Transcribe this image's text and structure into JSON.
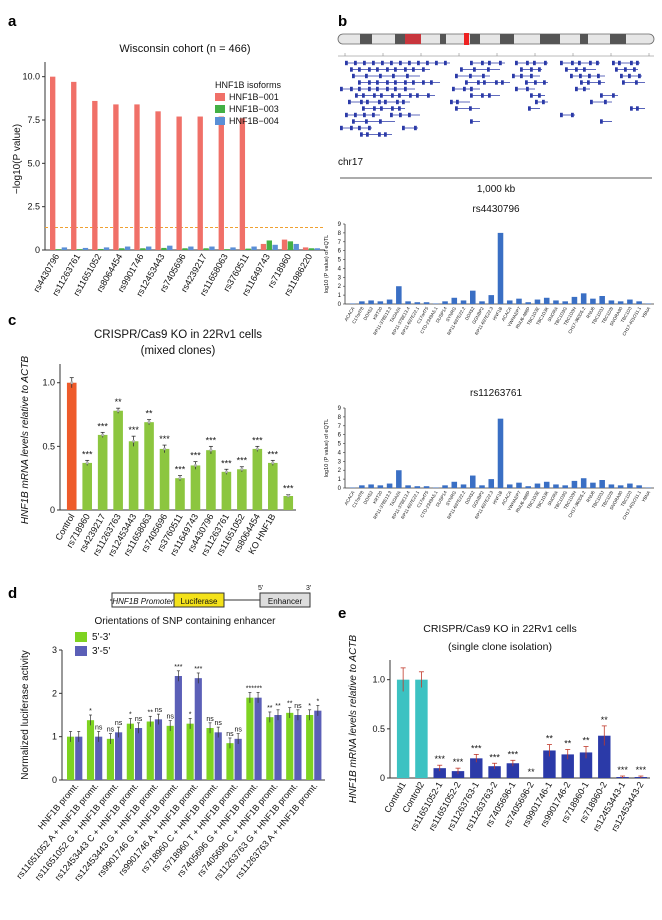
{
  "panels": {
    "a": "a",
    "b": "b",
    "c": "c",
    "d": "d",
    "e": "e"
  },
  "colors": {
    "red": "#f07068",
    "green": "#43b045",
    "blue": "#5a8fd6",
    "dark_blue": "#2b3aa8",
    "gene_blue": "#2b3aa8",
    "lime": "#8cc63f",
    "orange": "#ee5b2b",
    "cyan": "#3cc2c2",
    "light_green": "#7ed321",
    "purple": "#5b5fb7"
  },
  "chart_data": [
    {
      "id": "a",
      "type": "bar",
      "title": "Wisconsin cohort (n = 466)",
      "ylabel": "−log10(P value)",
      "ylim": [
        0,
        10.5
      ],
      "yticks": [
        "0",
        "2.5",
        "5.0",
        "7.5",
        "10.0"
      ],
      "ytick_values": [
        0,
        2.5,
        5.0,
        7.5,
        10.0
      ],
      "threshold": 1.3,
      "legend_title": "HNF1B isoforms",
      "categories": [
        "rs4430796",
        "rs11263761",
        "rs11651052",
        "rs8064454",
        "rs9901746",
        "rs12453443",
        "rs7405696",
        "rs4239217",
        "rs11658063",
        "rs3760511",
        "rs11649743",
        "rs718960",
        "rs11986220"
      ],
      "series": [
        {
          "name": "HNF1B−001",
          "color": "#f07068",
          "values": [
            10.0,
            9.7,
            8.6,
            8.4,
            8.4,
            8.0,
            7.7,
            7.7,
            7.7,
            7.6,
            0.35,
            0.6,
            0.15
          ]
        },
        {
          "name": "HNF1B−003",
          "color": "#43b045",
          "values": [
            0.05,
            0.05,
            0.06,
            0.1,
            0.1,
            0.12,
            0.1,
            0.1,
            0.05,
            0.08,
            0.55,
            0.5,
            0.1
          ]
        },
        {
          "name": "HNF1B−004",
          "color": "#5a8fd6",
          "values": [
            0.15,
            0.12,
            0.15,
            0.2,
            0.2,
            0.25,
            0.2,
            0.2,
            0.15,
            0.2,
            0.3,
            0.35,
            0.1
          ]
        }
      ]
    },
    {
      "id": "b1",
      "type": "bar",
      "title": "rs4430796",
      "ylabel": "log10 (P value) of eQTL",
      "ylim": [
        0,
        9
      ],
      "yticks": [
        "0",
        "1",
        "2",
        "3",
        "4",
        "5",
        "6",
        "7",
        "8",
        "9"
      ],
      "categories": [
        "ACACA",
        "C17orf78",
        "DDX52",
        "KRT20",
        "RP11-378E13.3",
        "TADA2A",
        "RP11-378E13.4",
        "RP11-697E22.1",
        "C17orf75",
        "CTD-2349A5.1",
        "DUSP14",
        "SYNRG",
        "RP11-697E22.2",
        "DDX52",
        "GGNBP2",
        "RP11-697E22.3",
        "HNF1B",
        "ACACA",
        "YWHAEP7",
        "RNU6-488P",
        "TBC1D3E",
        "TBC1D3K",
        "SNORA",
        "TBC1D3G",
        "TBC1D3H",
        "CH17-360D5.2",
        "RNU6",
        "TBC1D3J",
        "TBC1D3I",
        "SNORA90",
        "TBC1D3",
        "CH17-401O11.1",
        "YBNA"
      ],
      "values": [
        0.05,
        0.3,
        0.4,
        0.3,
        0.5,
        2.0,
        0.3,
        0.2,
        0.2,
        0.05,
        0.3,
        0.7,
        0.4,
        1.5,
        0.3,
        1.0,
        8.0,
        0.4,
        0.6,
        0.2,
        0.5,
        0.7,
        0.4,
        0.3,
        0.8,
        1.2,
        0.6,
        0.9,
        0.4,
        0.3,
        0.5,
        0.3,
        0.05
      ]
    },
    {
      "id": "b2",
      "type": "bar",
      "title": "rs11263761",
      "ylabel": "log10 (P value) of eQTL",
      "ylim": [
        0,
        9
      ],
      "yticks": [
        "0",
        "1",
        "2",
        "3",
        "4",
        "5",
        "6",
        "7",
        "8",
        "9"
      ],
      "categories": [
        "ACACA",
        "C17orf78",
        "DDX52",
        "KRT20",
        "RP11-378E13.3",
        "TADA2A",
        "RP11-378E13.4",
        "RP11-697E22.1",
        "C17orf75",
        "CTD-2349A5.1",
        "DUSP14",
        "SYNRG",
        "RP11-697E22.2",
        "DDX52",
        "GGNBP2",
        "RP11-697E22.3",
        "HNF1B",
        "ACACA",
        "YWHAEP7",
        "RNU6-488P",
        "TBC1D3E",
        "TBC1D3K",
        "SNORA",
        "TBC1D3G",
        "TBC1D3H",
        "CH17-360D5.2",
        "RNU6",
        "TBC1D3J",
        "TBC1D3I",
        "SNORA90",
        "TBC1D3",
        "CH17-401O11.1",
        "YBNA"
      ],
      "values": [
        0.05,
        0.3,
        0.4,
        0.3,
        0.5,
        2.0,
        0.3,
        0.2,
        0.2,
        0.05,
        0.3,
        0.7,
        0.4,
        1.4,
        0.3,
        1.0,
        7.8,
        0.4,
        0.6,
        0.2,
        0.5,
        0.7,
        0.4,
        0.3,
        0.8,
        1.1,
        0.6,
        0.9,
        0.4,
        0.3,
        0.5,
        0.3,
        0.05
      ]
    },
    {
      "id": "c",
      "type": "bar",
      "title": "CRISPR/Cas9 KO in 22Rv1 cells",
      "subtitle": "(mixed clones)",
      "ylabel": "HNF1B mRNA levels relative to ACTB",
      "ylim": [
        0,
        1.1
      ],
      "yticks": [
        "0",
        "0.5",
        "1.0"
      ],
      "ytick_values": [
        0,
        0.5,
        1.0
      ],
      "categories": [
        "Control",
        "rs718960",
        "rs4239217",
        "rs11263763",
        "rs12453443",
        "rs11658063",
        "rs7405696",
        "rs3760511",
        "rs11649743",
        "rs4430796",
        "rs11263761",
        "rs11651052",
        "rs8064454",
        "KO HNF1B"
      ],
      "values": [
        1.0,
        0.37,
        0.59,
        0.78,
        0.54,
        0.69,
        0.48,
        0.25,
        0.35,
        0.47,
        0.3,
        0.32,
        0.48,
        0.37
      ],
      "errors": [
        0.04,
        0.02,
        0.02,
        0.02,
        0.04,
        0.02,
        0.03,
        0.02,
        0.03,
        0.03,
        0.02,
        0.02,
        0.02,
        0.02
      ],
      "sig": [
        "",
        "***",
        "***",
        "**",
        "***",
        "**",
        "***",
        "***",
        "***",
        "***",
        "***",
        "***",
        "***",
        "***"
      ],
      "extra_bar": {
        "value": 0.11,
        "error": 0.01,
        "sig": "***"
      }
    },
    {
      "id": "d",
      "type": "bar",
      "title": "Orientations of SNP containing enhancer",
      "construct": {
        "promoter": "HNF1B Promoter",
        "reporter": "Luciferase",
        "enhancer": "Enhancer",
        "five": "5'",
        "three": "3'"
      },
      "ylabel": "Normalized luciferase activity",
      "ylim": [
        0,
        3
      ],
      "yticks": [
        "0",
        "1",
        "2",
        "3"
      ],
      "ytick_values": [
        0,
        1,
        2,
        3
      ],
      "categories": [
        "HNF1B promt.",
        "rs11651052 A + HNF1B promt.",
        "rs11651052 G + HNF1B promt.",
        "rs12453443 C + HNF1B promt.",
        "rs12453443 G + HNF1B promt.",
        "rs9901746 G + HNF1B promt.",
        "rs9901746 A + HNF1B promt.",
        "rs718960 C + HNF1B promt.",
        "rs718960 T + HNF1B promt.",
        "rs7405696 G + HNF1B promt.",
        "rs7405696 C + HNF1B promt.",
        "rs11263763 G + HNF1B promt.",
        "rs11263763 A + HNF1B promt."
      ],
      "series": [
        {
          "name": "5'-3'",
          "color": "#7ed321",
          "values": [
            1.0,
            1.38,
            0.95,
            1.3,
            1.35,
            1.25,
            1.3,
            1.2,
            0.85,
            1.9,
            1.45,
            1.55,
            1.5
          ],
          "sig": [
            "",
            "*",
            "ns",
            "*",
            "**",
            "ns",
            "*",
            "ns",
            "ns",
            "***",
            "**",
            "**",
            "*"
          ]
        },
        {
          "name": "3'-5'",
          "color": "#5b5fb7",
          "values": [
            1.0,
            1.0,
            1.1,
            1.2,
            1.4,
            2.4,
            2.35,
            1.1,
            0.95,
            1.9,
            1.5,
            1.5,
            1.6
          ],
          "sig": [
            "",
            "ns",
            "ns",
            "ns",
            "ns",
            "***",
            "***",
            "ns",
            "ns",
            "***",
            "**",
            "ns",
            "*"
          ]
        }
      ]
    },
    {
      "id": "e",
      "type": "bar",
      "title": "CRISPR/Cas9 KO in 22Rv1 cells",
      "subtitle": "(single clone isolation)",
      "ylabel": "HNF1B mRNA levels relative to ACTB",
      "ylim": [
        0,
        1.2
      ],
      "yticks": [
        "0",
        "0.5",
        "1.0"
      ],
      "ytick_values": [
        0,
        0.5,
        1.0
      ],
      "categories": [
        "Control1",
        "Control2",
        "rs11651052-1",
        "rs11651052-2",
        "rs11263763-1",
        "rs11263763-2",
        "rs7405696-1",
        "rs7405696-2",
        "rs9901746-1",
        "rs9901746-2",
        "rs718960-1",
        "rs718960-2",
        "rs12453443-1",
        "rs12453443-2"
      ],
      "values": [
        1.0,
        1.0,
        0.1,
        0.07,
        0.2,
        0.12,
        0.15,
        0.0,
        0.28,
        0.24,
        0.26,
        0.43,
        0.01,
        0.01
      ],
      "errors": [
        0.12,
        0.08,
        0.03,
        0.03,
        0.04,
        0.03,
        0.03,
        0.0,
        0.06,
        0.05,
        0.06,
        0.1,
        0.01,
        0.01
      ],
      "sig": [
        "",
        "",
        "***",
        "***",
        "***",
        "***",
        "***",
        "**",
        "**",
        "**",
        "**",
        "**",
        "***",
        "***"
      ]
    }
  ],
  "panel_b": {
    "chrom_label": "chr17",
    "scale_label": "1,000 kb"
  }
}
